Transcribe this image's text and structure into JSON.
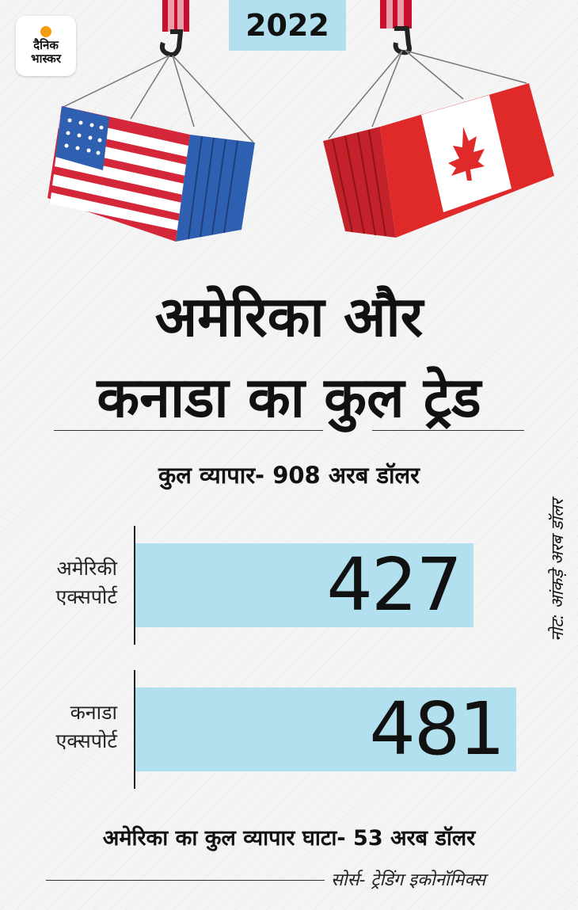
{
  "brand": {
    "line1": "दैनिक",
    "line2": "भास्कर"
  },
  "year": "2022",
  "title": {
    "line1": "अमेरिका और",
    "line2": "कनाडा का कुल ट्रेड"
  },
  "subtitle": "कुल व्यापार- 908 अरब डॉलर",
  "note": "नोट: आंकड़े अरब डॉलर",
  "deficit": "अमेरिका का कुल व्यापार घाटा- 53 अरब डॉलर",
  "source": "सोर्स- ट्रेडिंग इकोनॉमिक्स",
  "colors": {
    "bar": "#b3e0ee",
    "usa_blue": "#2f5fb0",
    "usa_red": "#d4283a",
    "canada_red": "#e02a2a"
  },
  "icons": [
    "usa-flag-container-icon",
    "canada-flag-container-icon",
    "crane-hook-icon"
  ],
  "chart_data": {
    "type": "bar",
    "orientation": "horizontal",
    "title": "अमेरिका और कनाडा का कुल ट्रेड",
    "categories": [
      "अमेरिकी एक्सपोर्ट",
      "कनाडा एक्सपोर्ट"
    ],
    "category_lines": [
      [
        "अमेरिकी",
        "एक्सपोर्ट"
      ],
      [
        "कनाडा",
        "एक्सपोर्ट"
      ]
    ],
    "values": [
      427,
      481
    ],
    "grid": false
  }
}
